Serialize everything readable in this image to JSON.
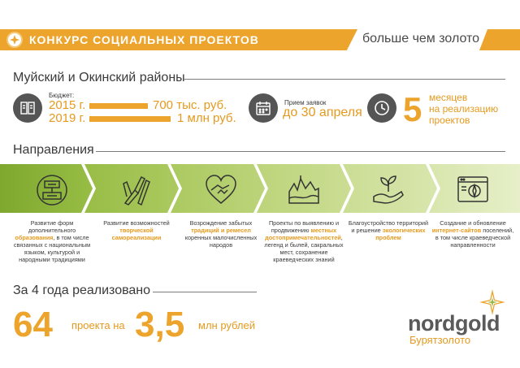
{
  "header": {
    "title": "КОНКУРС СОЦИАЛЬНЫХ ПРОЕКТОВ",
    "slogan": "больше чем золото",
    "logo_icon": "nordgold-emblem-icon"
  },
  "region": {
    "title": "Муйский и Окинский районы"
  },
  "budget": {
    "label": "Бюджет:",
    "rows": [
      {
        "year": "2015 г.",
        "amount": "700 тыс. руб."
      },
      {
        "year": "2019 г.",
        "amount": "1 млн руб."
      }
    ],
    "icon": "documents-icon"
  },
  "applications": {
    "label": "Прием заявок",
    "deadline": "до 30 апреля",
    "icon": "calendar-icon"
  },
  "duration": {
    "number": "5",
    "line1": "месяцев",
    "line2": "на реализацию",
    "line3": "проектов",
    "icon": "clock-icon"
  },
  "directions": {
    "title": "Направления",
    "items": [
      {
        "icon": "ornament-icon",
        "pre": "Развитие форм дополнительного ",
        "hl": "образования",
        "post": ", в том числе связанных с национальным языком, культурой и народными традициями"
      },
      {
        "icon": "brushes-icon",
        "pre": "Развитие возможностей ",
        "hl": "творческой самореализации",
        "post": ""
      },
      {
        "icon": "heart-hands-icon",
        "pre": "Возрождение забытых ",
        "hl": "традиций и ремесел",
        "post": " коренных малочисленных народов"
      },
      {
        "icon": "landscape-icon",
        "pre": "Проекты по выявлению и продвижению ",
        "hl": "местных достопримечательностей",
        "post": ", легенд и былей, сакральных мест, сохранение краеведческих знаний"
      },
      {
        "icon": "plant-hand-icon",
        "pre": "Благоустройство территорий и решение ",
        "hl": "экологических проблем",
        "post": ""
      },
      {
        "icon": "website-icon",
        "pre": "Создание и обновление ",
        "hl": "интернет-сайтов",
        "post": " поселений, в том числе краеведческой направленности"
      }
    ]
  },
  "totals": {
    "title": "За 4 года реализовано",
    "projects_number": "64",
    "projects_text": "проекта на",
    "amount_number": "3,5",
    "amount_text": "млн рублей"
  },
  "brand": {
    "name": "nordgold",
    "subsidiary": "Бурятзолото",
    "logo_icon": "nordgold-star-icon"
  },
  "colors": {
    "accent": "#eca42d",
    "green_dark": "#8fb63e",
    "green_light": "#dbe9b3",
    "text": "#3a3a3a",
    "icon_circle": "#555555"
  }
}
